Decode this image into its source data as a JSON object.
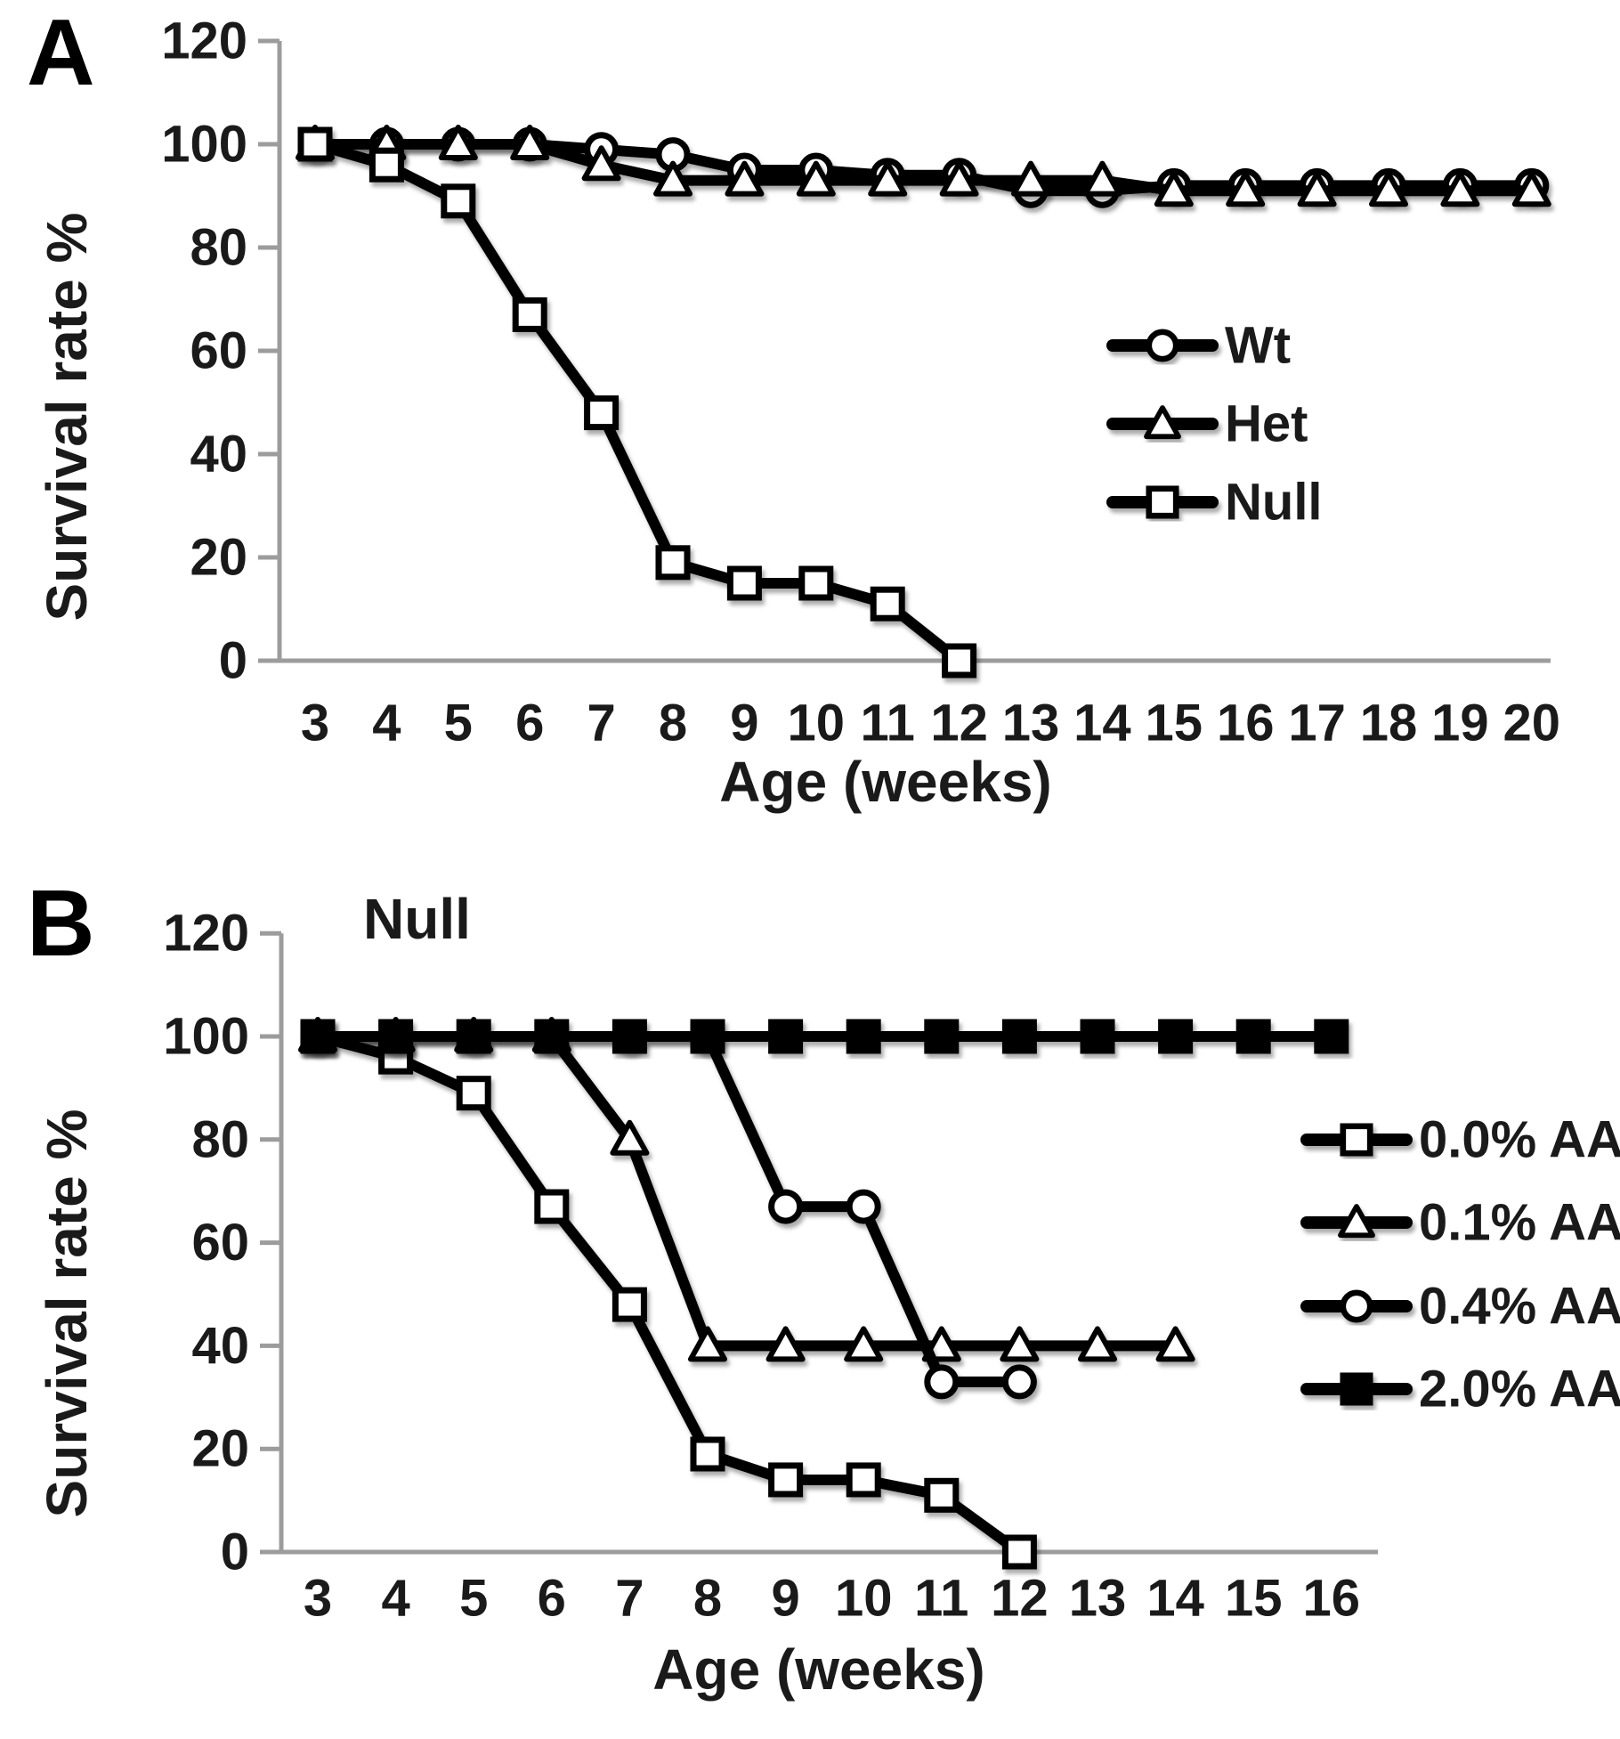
{
  "colors": {
    "series": "#000000",
    "axis": "#9c9c9c",
    "background": "#ffffff",
    "marker_open_fill": "#ffffff"
  },
  "chart_data": [
    {
      "type": "line",
      "panel_label": "A",
      "title": "",
      "xlabel": "Age (weeks)",
      "ylabel": "Survival rate %",
      "x_ticks": [
        3,
        4,
        5,
        6,
        7,
        8,
        9,
        10,
        11,
        12,
        13,
        14,
        15,
        16,
        17,
        18,
        19,
        20
      ],
      "y_ticks": [
        0,
        20,
        40,
        60,
        80,
        100,
        120
      ],
      "ylim": [
        0,
        120
      ],
      "grid": false,
      "legend_position": "right-middle",
      "series": [
        {
          "name": "Wt",
          "marker": "circle",
          "marker_fill": "open",
          "x": [
            3,
            4,
            5,
            6,
            7,
            8,
            9,
            10,
            11,
            12,
            13,
            14,
            15,
            16,
            17,
            18,
            19,
            20
          ],
          "values": [
            100,
            100,
            100,
            100,
            99,
            98,
            95,
            95,
            94,
            94,
            91,
            91,
            92,
            92,
            92,
            92,
            92,
            92
          ]
        },
        {
          "name": "Het",
          "marker": "triangle",
          "marker_fill": "open",
          "x": [
            3,
            4,
            5,
            6,
            7,
            8,
            9,
            10,
            11,
            12,
            13,
            14,
            15,
            16,
            17,
            18,
            19,
            20
          ],
          "values": [
            100,
            100,
            100,
            100,
            96,
            93,
            93,
            93,
            93,
            93,
            93,
            93,
            91,
            91,
            91,
            91,
            91,
            91
          ]
        },
        {
          "name": "Null",
          "marker": "square",
          "marker_fill": "open",
          "x": [
            3,
            4,
            5,
            6,
            7,
            8,
            9,
            10,
            11,
            12
          ],
          "values": [
            100,
            96,
            89,
            67,
            48,
            19,
            15,
            15,
            11,
            0
          ]
        }
      ]
    },
    {
      "type": "line",
      "panel_label": "B",
      "title": "Null",
      "xlabel": "Age  (weeks)",
      "ylabel": "Survival rate %",
      "x_ticks": [
        3,
        4,
        5,
        6,
        7,
        8,
        9,
        10,
        11,
        12,
        13,
        14,
        15,
        16
      ],
      "y_ticks": [
        0,
        20,
        40,
        60,
        80,
        100,
        120
      ],
      "ylim": [
        0,
        120
      ],
      "grid": false,
      "legend_position": "right-middle",
      "series": [
        {
          "name": "0.0% AA",
          "marker": "square",
          "marker_fill": "open",
          "x": [
            3,
            4,
            5,
            6,
            7,
            8,
            9,
            10,
            11,
            12
          ],
          "values": [
            100,
            96,
            89,
            67,
            48,
            19,
            14,
            14,
            11,
            0
          ]
        },
        {
          "name": "0.1% AA",
          "marker": "triangle",
          "marker_fill": "open",
          "x": [
            3,
            4,
            5,
            6,
            7,
            8,
            9,
            10,
            11,
            12,
            13,
            14
          ],
          "values": [
            100,
            100,
            100,
            100,
            80,
            40,
            40,
            40,
            40,
            40,
            40,
            40
          ]
        },
        {
          "name": "0.4% AA",
          "marker": "circle",
          "marker_fill": "open",
          "x": [
            3,
            4,
            5,
            6,
            7,
            8,
            9,
            10,
            11,
            12
          ],
          "values": [
            100,
            100,
            100,
            100,
            100,
            100,
            67,
            67,
            33,
            33
          ]
        },
        {
          "name": "2.0% AA",
          "marker": "square",
          "marker_fill": "filled",
          "x": [
            3,
            4,
            5,
            6,
            7,
            8,
            9,
            10,
            11,
            12,
            13,
            14,
            15,
            16
          ],
          "values": [
            100,
            100,
            100,
            100,
            100,
            100,
            100,
            100,
            100,
            100,
            100,
            100,
            100,
            100
          ]
        }
      ]
    }
  ]
}
